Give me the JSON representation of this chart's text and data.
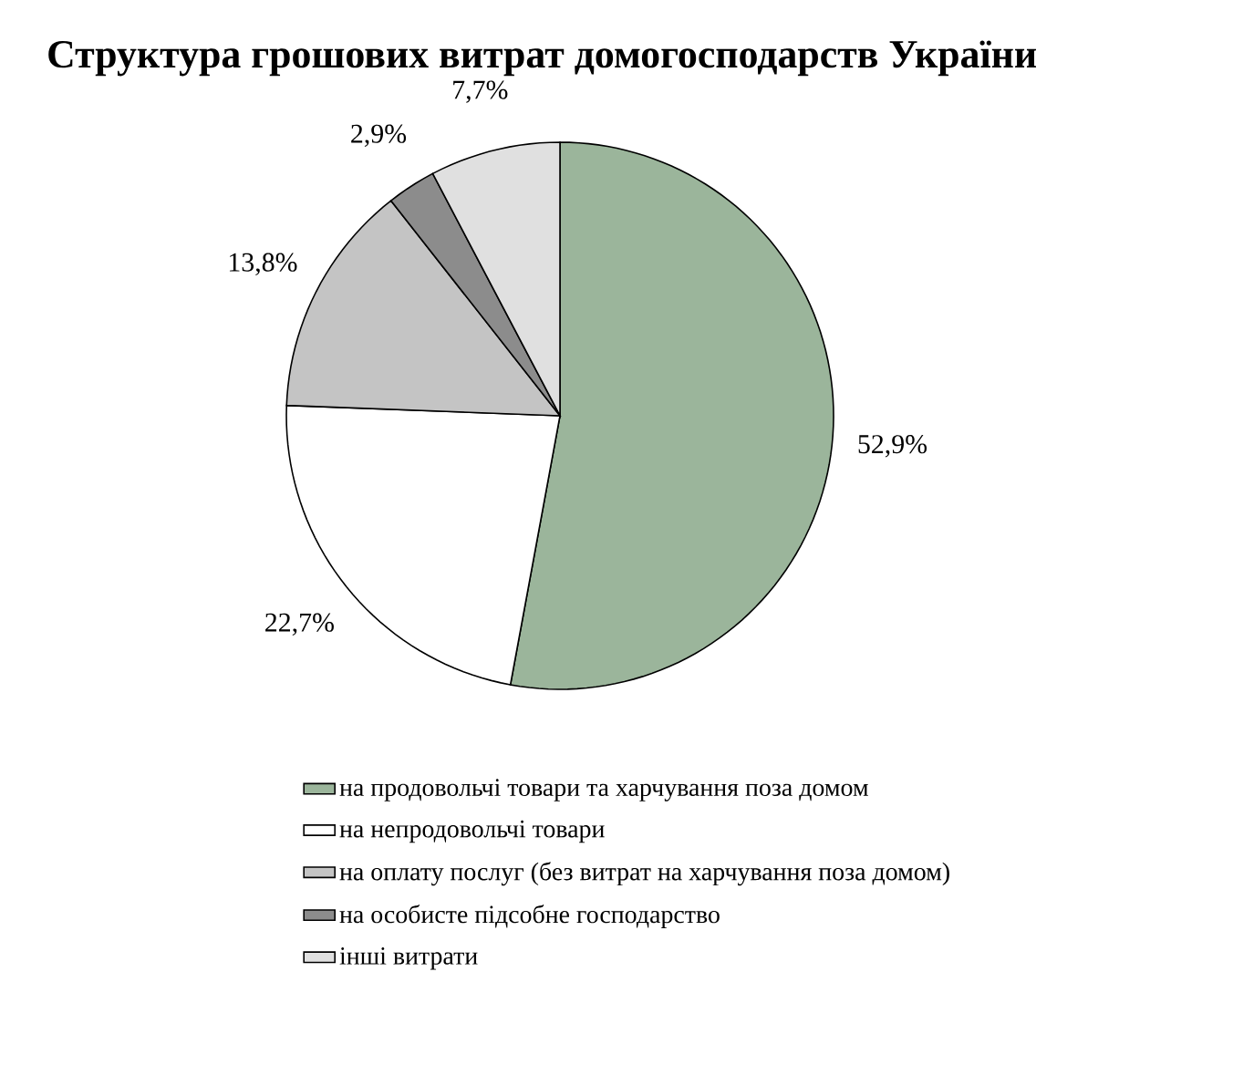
{
  "chart_data": {
    "type": "pie",
    "title": "Структура грошових витрат домогосподарств України",
    "categories": [
      "на продовольчі товари та харчування поза домом",
      "на непродовольчі товари",
      "на оплату послуг (без витрат на харчування поза домом)",
      "на особисте підсобне господарство",
      "інші  витрати"
    ],
    "values": [
      52.9,
      22.7,
      13.8,
      2.9,
      7.7
    ],
    "value_labels": [
      "52,9%",
      "22,7%",
      "13,8%",
      "2,9%",
      "7,7%"
    ],
    "colors": [
      "#9bb59b",
      "#ffffff",
      "#c4c4c4",
      "#8c8c8c",
      "#e0e0e0"
    ],
    "legend": "bottom"
  }
}
